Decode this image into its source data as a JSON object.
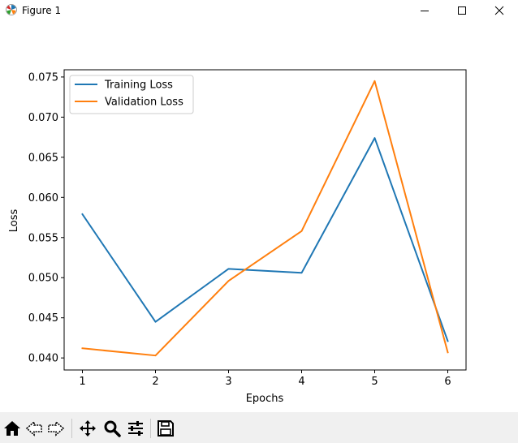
{
  "window": {
    "title": "Figure 1",
    "icons": {
      "app": "matplotlib-icon",
      "minimize": "minimize-icon",
      "maximize": "maximize-icon",
      "close": "close-icon"
    }
  },
  "toolbar": {
    "buttons": [
      "home-icon",
      "back-arrow-icon",
      "forward-arrow-icon",
      "pan-icon",
      "zoom-icon",
      "configure-subplots-icon",
      "save-icon"
    ]
  },
  "chart_data": {
    "type": "line",
    "title": "",
    "xlabel": "Epochs",
    "ylabel": "Loss",
    "x": [
      1,
      2,
      3,
      4,
      5,
      6
    ],
    "xlim": [
      0.75,
      6.25
    ],
    "ylim": [
      0.0385,
      0.0759
    ],
    "xticks": [
      1,
      2,
      3,
      4,
      5,
      6
    ],
    "yticks": [
      0.04,
      0.045,
      0.05,
      0.055,
      0.06,
      0.065,
      0.07,
      0.075
    ],
    "ytick_labels": [
      "0.040",
      "0.045",
      "0.050",
      "0.055",
      "0.060",
      "0.065",
      "0.070",
      "0.075"
    ],
    "grid": false,
    "legend": "upper-left",
    "series": [
      {
        "name": "Training Loss",
        "color": "#1f77b4",
        "values": [
          0.0579,
          0.0445,
          0.0511,
          0.0506,
          0.0674,
          0.0421
        ]
      },
      {
        "name": "Validation Loss",
        "color": "#ff7f0e",
        "values": [
          0.0412,
          0.0403,
          0.0496,
          0.0558,
          0.0745,
          0.0407
        ]
      }
    ]
  }
}
